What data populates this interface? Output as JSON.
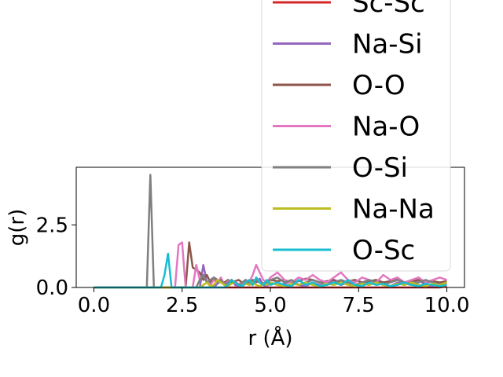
{
  "chart_data": {
    "type": "line",
    "xlabel": "r (Å)",
    "ylabel": "g(r)",
    "xlim": [
      -0.5,
      10.5
    ],
    "ylim": [
      0,
      4.8
    ],
    "xticks": [
      0.0,
      2.5,
      5.0,
      7.5,
      10.0
    ],
    "xtick_labels": [
      "0.0",
      "2.5",
      "5.0",
      "7.5",
      "10.0"
    ],
    "yticks": [
      0.0,
      2.5
    ],
    "ytick_labels": [
      "0.0",
      "2.5"
    ],
    "grid": false,
    "legend_position": "upper right",
    "x": [
      0,
      0.2,
      0.4,
      0.6,
      0.8,
      1.0,
      1.2,
      1.4,
      1.5,
      1.6,
      1.7,
      1.8,
      1.9,
      2.0,
      2.1,
      2.2,
      2.3,
      2.4,
      2.5,
      2.6,
      2.7,
      2.8,
      2.9,
      3.0,
      3.1,
      3.2,
      3.3,
      3.4,
      3.5,
      3.6,
      3.7,
      3.8,
      3.9,
      4.0,
      4.1,
      4.2,
      4.3,
      4.4,
      4.5,
      4.6,
      4.7,
      4.8,
      4.9,
      5.0,
      5.2,
      5.4,
      5.6,
      5.8,
      6.0,
      6.2,
      6.4,
      6.6,
      6.8,
      7.0,
      7.2,
      7.4,
      7.6,
      7.8,
      8.0,
      8.2,
      8.4,
      8.6,
      8.8,
      9.0,
      9.2,
      9.4,
      9.6,
      9.8,
      10.0
    ],
    "series": [
      {
        "name": "Sc-Sc",
        "color": "#d62728",
        "values": [
          0,
          0,
          0,
          0,
          0,
          0,
          0,
          0,
          0,
          0,
          0,
          0,
          0,
          0,
          0,
          0,
          0,
          0,
          0,
          0,
          0,
          0,
          0,
          0,
          0,
          0,
          0,
          0,
          0,
          0,
          0,
          0,
          0,
          0,
          0,
          0,
          0,
          0,
          0,
          0,
          0,
          0,
          0,
          0,
          0,
          0,
          0,
          0,
          0,
          0,
          0,
          0,
          0,
          0,
          0,
          0,
          0,
          0,
          0,
          0,
          0,
          0,
          0,
          0,
          0,
          0,
          0,
          0,
          0.05
        ]
      },
      {
        "name": "Na-Si",
        "color": "#9467bd",
        "values": [
          0,
          0,
          0,
          0,
          0,
          0,
          0,
          0,
          0,
          0,
          0,
          0,
          0,
          0,
          0,
          0,
          0,
          0,
          0,
          0,
          0,
          0,
          0,
          0,
          0.9,
          0.2,
          0.1,
          0,
          0.15,
          0.25,
          0.1,
          0.05,
          0.3,
          0.1,
          0.05,
          0.2,
          0.3,
          0.1,
          0.15,
          0.2,
          0.35,
          0.1,
          0.05,
          0.2,
          0.1,
          0.15,
          0.25,
          0.1,
          0.05,
          0.2,
          0.1,
          0.15,
          0.3,
          0.1,
          0.2,
          0.05,
          0.15,
          0.1,
          0.25,
          0.1,
          0.05,
          0.2,
          0.15,
          0.1,
          0.3,
          0.1,
          0.05,
          0.2,
          0.1
        ]
      },
      {
        "name": "O-O",
        "color": "#8c564b",
        "values": [
          0,
          0,
          0,
          0,
          0,
          0,
          0,
          0,
          0,
          0,
          0,
          0,
          0,
          0,
          0,
          0,
          0,
          0,
          0,
          0,
          1.8,
          0.8,
          0.7,
          0.6,
          0.3,
          0.5,
          0.2,
          0.4,
          0.3,
          0.25,
          0.2,
          0.3,
          0.2,
          0.25,
          0.3,
          0.2,
          0.15,
          0.2,
          0.3,
          0.25,
          0.2,
          0.15,
          0.25,
          0.3,
          0.25,
          0.3,
          0.2,
          0.25,
          0.35,
          0.3,
          0.2,
          0.25,
          0.3,
          0.2,
          0.25,
          0.3,
          0.2,
          0.25,
          0.3,
          0.2,
          0.25,
          0.35,
          0.2,
          0.25,
          0.3,
          0.2,
          0.25,
          0.2,
          0.25
        ]
      },
      {
        "name": "Na-O",
        "color": "#e377c2",
        "values": [
          0,
          0,
          0,
          0,
          0,
          0,
          0,
          0,
          0,
          0,
          0,
          0,
          0,
          0,
          0,
          0,
          0,
          1.7,
          1.8,
          0,
          0,
          0,
          0.9,
          0.3,
          0.5,
          0.2,
          0.1,
          0.3,
          0.2,
          0.4,
          0.1,
          0.25,
          0.3,
          0.2,
          0.15,
          0.1,
          0.3,
          0.2,
          0.5,
          0.9,
          0.6,
          0.3,
          0.2,
          0.4,
          0.6,
          0.3,
          0.2,
          0.4,
          0.3,
          0.5,
          0.3,
          0.2,
          0.4,
          0.6,
          0.3,
          0.2,
          0.4,
          0.3,
          0.2,
          0.5,
          0.3,
          0.4,
          0.2,
          0.3,
          0.4,
          0.2,
          0.3,
          0.4,
          0.3
        ]
      },
      {
        "name": "O-Si",
        "color": "#7f7f7f",
        "values": [
          0,
          0,
          0,
          0,
          0,
          0,
          0,
          0,
          0,
          4.5,
          0,
          0,
          0,
          0,
          0,
          0,
          0,
          0,
          0,
          0,
          0,
          0,
          0,
          0.3,
          0.5,
          0.2,
          0.3,
          0.4,
          0.2,
          0.3,
          0.1,
          0.2,
          0.3,
          0.2,
          0.1,
          0.2,
          0.3,
          0.2,
          0.25,
          0.3,
          0.2,
          0.1,
          0.2,
          0.3,
          0.4,
          0.2,
          0.3,
          0.1,
          0.2,
          0.3,
          0.2,
          0.1,
          0.2,
          0.3,
          0.2,
          0.1,
          0.2,
          0.3,
          0.2,
          0.1,
          0.2,
          0.3,
          0.2,
          0.1,
          0.2,
          0.3,
          0.2,
          0.1,
          0.2
        ]
      },
      {
        "name": "Na-Na",
        "color": "#bcbd22",
        "values": [
          0,
          0,
          0,
          0,
          0,
          0,
          0,
          0,
          0,
          0,
          0,
          0,
          0,
          0,
          0,
          0,
          0,
          0,
          0,
          0,
          0,
          0,
          0,
          0,
          0.1,
          0.2,
          0.05,
          0.1,
          0.3,
          0.2,
          0.1,
          0.05,
          0.15,
          0.2,
          0.1,
          0.05,
          0.15,
          0.1,
          0.2,
          0.1,
          0.05,
          0.15,
          0.1,
          0.2,
          0.1,
          0.05,
          0.15,
          0.1,
          0.2,
          0.1,
          0.05,
          0.15,
          0.1,
          0.2,
          0.1,
          0.05,
          0.15,
          0.1,
          0.2,
          0.1,
          0.05,
          0.15,
          0.1,
          0.2,
          0.1,
          0.05,
          0.15,
          0.1,
          0.2
        ]
      },
      {
        "name": "O-Sc",
        "color": "#17becf",
        "values": [
          0,
          0,
          0,
          0,
          0,
          0,
          0,
          0,
          0,
          0,
          0,
          0,
          0,
          0.5,
          1.35,
          0,
          0,
          0,
          0,
          0,
          0,
          0,
          0,
          0,
          0,
          0,
          0,
          0,
          0,
          0,
          0,
          0.1,
          0.3,
          0.2,
          0.1,
          0.05,
          0.2,
          0.3,
          0.1,
          0.4,
          0.2,
          0.1,
          0.3,
          0.1,
          0.2,
          0.1,
          0.05,
          0.3,
          0.1,
          0.2,
          0.05,
          0.1,
          0.2,
          0.1,
          0.3,
          0.1,
          0.05,
          0.2,
          0.1,
          0.15,
          0.05,
          0.1,
          0.2,
          0.1,
          0.05,
          0.15,
          0.1,
          0.05,
          0.1
        ]
      }
    ]
  }
}
